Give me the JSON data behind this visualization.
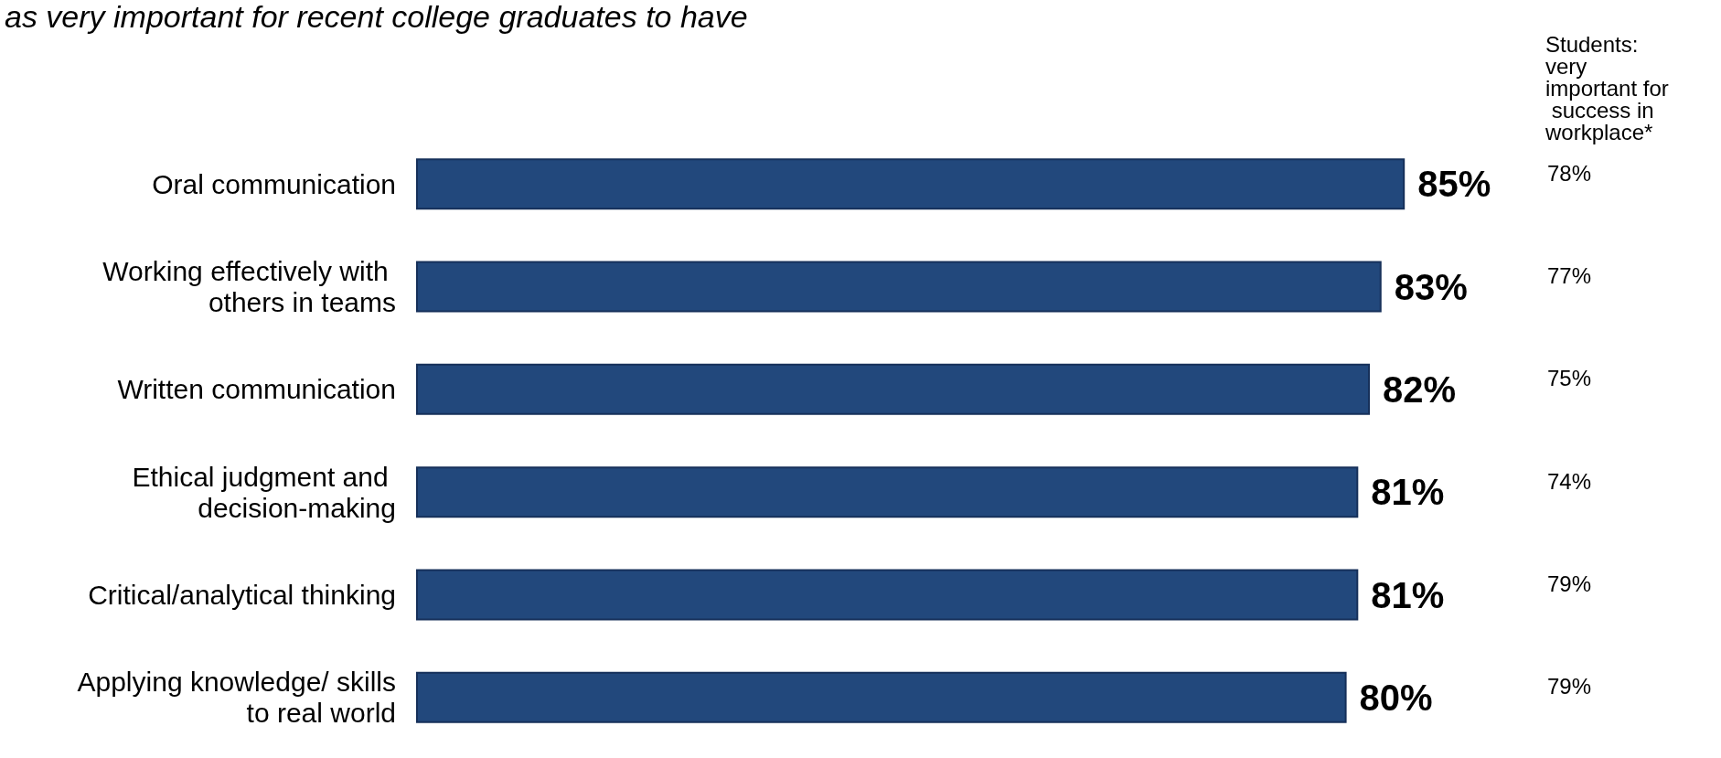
{
  "chart_data": {
    "type": "bar",
    "orientation": "horizontal",
    "title": "as very important for recent college graduates to have",
    "categories": [
      "Oral communication",
      "Working effectively with others in teams",
      "Written communication",
      "Ethical judgment and decision-making",
      "Critical/analytical thinking",
      "Applying knowledge/ skills to real world"
    ],
    "values": [
      85,
      83,
      82,
      81,
      81,
      80
    ],
    "value_labels": [
      "85%",
      "83%",
      "82%",
      "81%",
      "81%",
      "80%"
    ],
    "color": "#22487c",
    "annotations": [
      "Students: very important for success in workplace*",
      "78%",
      "77%",
      "75%",
      "74%",
      "79%",
      "79%"
    ]
  }
}
